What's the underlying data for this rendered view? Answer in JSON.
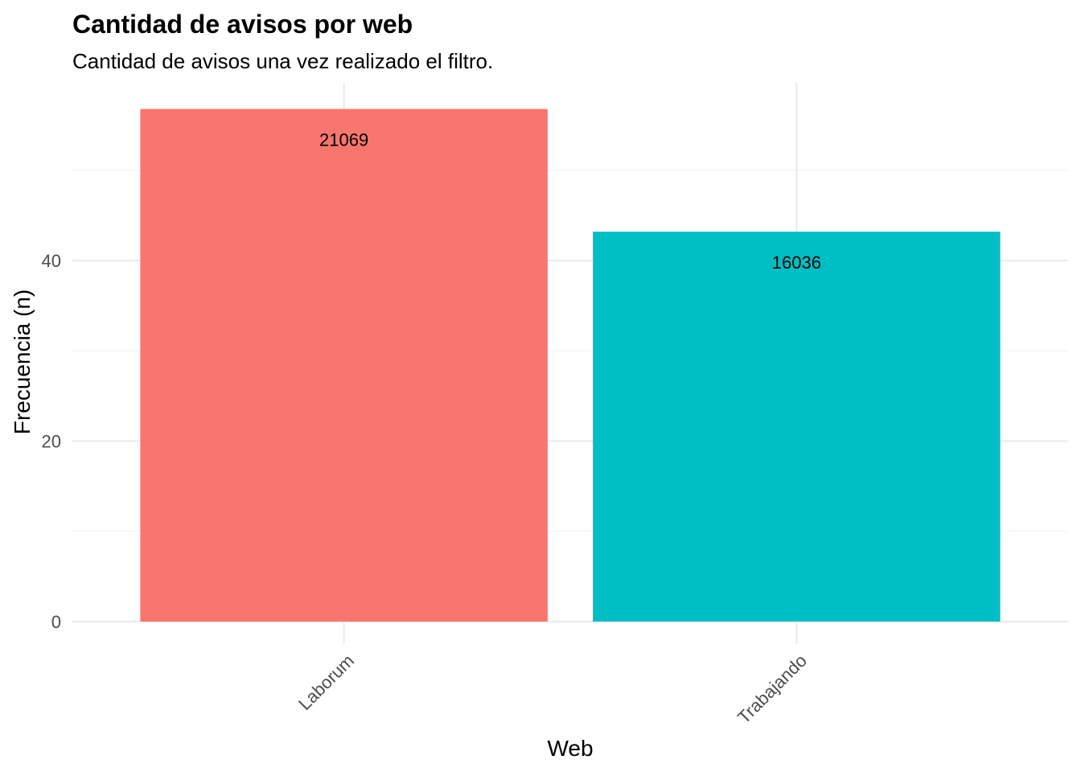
{
  "chart_data": {
    "type": "bar",
    "title": "Cantidad de avisos por web",
    "subtitle": "Cantidad de avisos una vez realizado el filtro.",
    "xlabel": "Web",
    "ylabel": "Frecuencia (n)",
    "categories": [
      "Laborum",
      "Trabajando"
    ],
    "values": [
      56.8,
      43.2
    ],
    "data_labels": [
      "21069",
      "16036"
    ],
    "colors": [
      "#F8766D",
      "#00BFC4"
    ],
    "ylim": [
      -2.5,
      59.7
    ],
    "yticks": [
      0,
      20,
      40
    ],
    "yticks_labels": [
      "0",
      "20",
      "40"
    ],
    "y_minor_gridlines": [
      10,
      30,
      50
    ],
    "grid": true,
    "legend": "none"
  }
}
